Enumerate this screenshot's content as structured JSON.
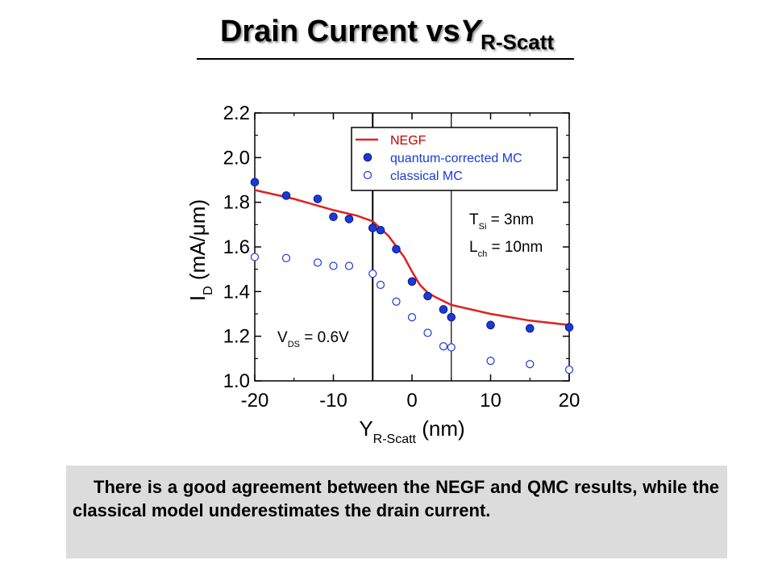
{
  "title": {
    "main": "Drain Current vs",
    "symbol": "Y",
    "subscript": "R-Scatt"
  },
  "chart_data": {
    "type": "scatter",
    "xlabel": {
      "main": "Y",
      "sub": "R-Scatt",
      "unit": "(nm)"
    },
    "ylabel": {
      "main": "I",
      "sub": "D",
      "unit": "(mA/μm)"
    },
    "xlim": [
      -20,
      20
    ],
    "ylim": [
      1.0,
      2.2
    ],
    "x_ticks": [
      "-20",
      "-10",
      "0",
      "10",
      "20"
    ],
    "y_ticks": [
      "1.0",
      "1.2",
      "1.4",
      "1.6",
      "1.8",
      "2.0",
      "2.2"
    ],
    "vlines": [
      -5,
      5
    ],
    "legend_position": "top-right",
    "colors": {
      "negf": "#e02020",
      "qmc": "#1a3ad8",
      "classical": "#1a3ad8"
    },
    "series": [
      {
        "name": "NEGF",
        "style": "line",
        "x": [
          -20,
          -15,
          -10,
          -7,
          -5,
          -3,
          -1,
          0,
          1,
          2,
          3,
          5,
          10,
          15,
          20
        ],
        "y": [
          1.855,
          1.815,
          1.765,
          1.74,
          1.715,
          1.65,
          1.555,
          1.49,
          1.43,
          1.395,
          1.375,
          1.34,
          1.3,
          1.27,
          1.25
        ]
      },
      {
        "name": "quantum-corrected MC",
        "style": "filled",
        "x": [
          -20,
          -16,
          -12,
          -10,
          -8,
          -5,
          -4,
          -2,
          0,
          2,
          4,
          5,
          10,
          15,
          20
        ],
        "y": [
          1.89,
          1.83,
          1.815,
          1.735,
          1.725,
          1.685,
          1.675,
          1.59,
          1.445,
          1.38,
          1.32,
          1.285,
          1.25,
          1.235,
          1.24
        ]
      },
      {
        "name": "classical MC",
        "style": "open",
        "x": [
          -20,
          -16,
          -12,
          -10,
          -8,
          -5,
          -4,
          -2,
          0,
          2,
          4,
          5,
          10,
          15,
          20
        ],
        "y": [
          1.555,
          1.55,
          1.53,
          1.515,
          1.515,
          1.48,
          1.43,
          1.355,
          1.285,
          1.215,
          1.155,
          1.15,
          1.09,
          1.075,
          1.05
        ]
      }
    ],
    "annotations": [
      {
        "id": "tsi",
        "main": "T",
        "sub": "Si",
        "rest": " = 3nm"
      },
      {
        "id": "lch",
        "main": "L",
        "sub": "ch",
        "rest": " = 10nm"
      },
      {
        "id": "vds",
        "main": "V",
        "sub": "DS",
        "rest": " = 0.6V"
      }
    ]
  },
  "note": "There is a good agreement between the NEGF and QMC results, while the classical model underestimates the drain current."
}
